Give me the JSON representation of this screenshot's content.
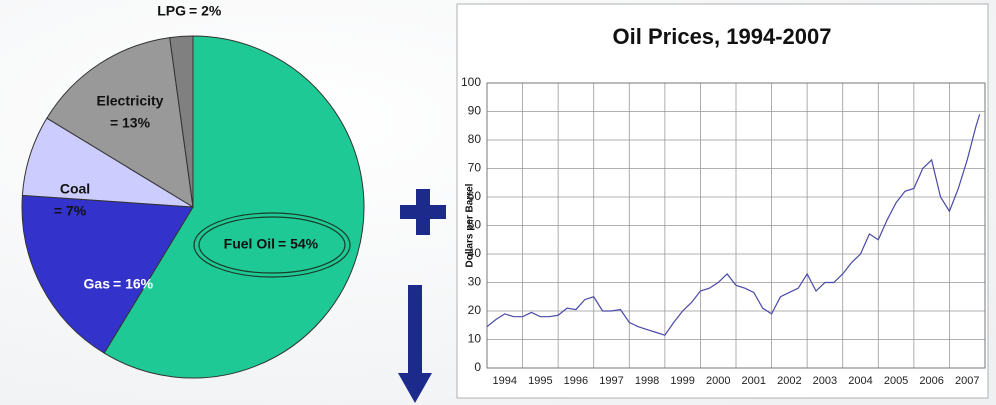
{
  "chart_data": [
    {
      "type": "pie",
      "categories": [
        "Fuel Oil",
        "Gas",
        "Coal",
        "Electricity",
        "LPG"
      ],
      "values": [
        54,
        16,
        7,
        13,
        2
      ],
      "value_labels": [
        "= 54%",
        "= 16%",
        "= 7%",
        "= 13%",
        "= 2%"
      ],
      "colors": [
        "#1fc995",
        "#3333cc",
        "#ccccff",
        "#999999",
        "#808080"
      ]
    },
    {
      "type": "line",
      "title": "Oil Prices, 1994-2007",
      "y_label": "Dollars per Barrel",
      "x": [
        1994.0,
        1994.25,
        1994.5,
        1994.75,
        1995.0,
        1995.25,
        1995.5,
        1995.75,
        1996.0,
        1996.25,
        1996.5,
        1996.75,
        1997.0,
        1997.25,
        1997.5,
        1997.75,
        1998.0,
        1998.25,
        1998.5,
        1998.75,
        1999.0,
        1999.25,
        1999.5,
        1999.75,
        2000.0,
        2000.25,
        2000.5,
        2000.75,
        2001.0,
        2001.25,
        2001.5,
        2001.75,
        2002.0,
        2002.25,
        2002.5,
        2002.75,
        2003.0,
        2003.25,
        2003.5,
        2003.75,
        2004.0,
        2004.25,
        2004.5,
        2004.75,
        2005.0,
        2005.25,
        2005.5,
        2005.75,
        2006.0,
        2006.25,
        2006.5,
        2006.75,
        2007.0,
        2007.25,
        2007.5,
        2007.75,
        2007.85
      ],
      "series": [
        {
          "name": "Oil price",
          "color": "#4a4aa8",
          "values": [
            14.5,
            17,
            19,
            18,
            18,
            19.5,
            18,
            18,
            18.5,
            21,
            20.5,
            24,
            25,
            20,
            20,
            20.5,
            16,
            14.5,
            13.5,
            12.5,
            11.5,
            16,
            20,
            23,
            27,
            28,
            30,
            33,
            29,
            28,
            26.5,
            21,
            19,
            25,
            26.5,
            28,
            33,
            27,
            30,
            30,
            33,
            37,
            40,
            47,
            45,
            52,
            58,
            62,
            63,
            70,
            73,
            60,
            55,
            63,
            73,
            85,
            89
          ]
        }
      ],
      "xlim": [
        1994,
        2008
      ],
      "xticks": [
        1994,
        1995,
        1996,
        1997,
        1998,
        1999,
        2000,
        2001,
        2002,
        2003,
        2004,
        2005,
        2006,
        2007
      ],
      "ylim": [
        0,
        100
      ],
      "yticks": [
        0,
        10,
        20,
        30,
        40,
        50,
        60,
        70,
        80,
        90,
        100
      ],
      "grid": true
    }
  ]
}
